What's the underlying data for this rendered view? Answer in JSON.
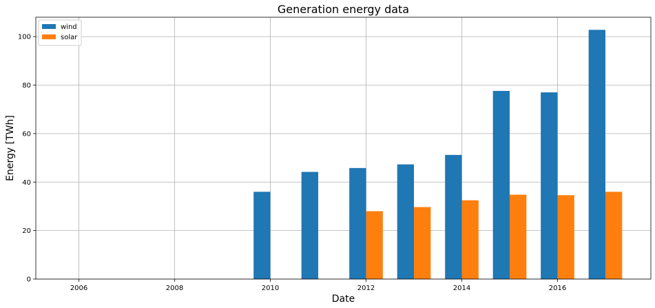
{
  "chart_data": {
    "type": "bar",
    "title": "Generation energy data",
    "xlabel": "Date",
    "ylabel": "Energy [TWh]",
    "x": [
      2010,
      2011,
      2012,
      2013,
      2014,
      2015,
      2016,
      2017
    ],
    "series": [
      {
        "name": "wind",
        "color": "#1f77b4",
        "values": [
          36.0,
          44.2,
          45.8,
          47.3,
          51.2,
          77.6,
          77.0,
          102.8
        ]
      },
      {
        "name": "solar",
        "color": "#ff7f0e",
        "values": [
          null,
          null,
          28.0,
          29.7,
          32.5,
          34.8,
          34.6,
          36.0
        ]
      }
    ],
    "xlim": [
      2005.1,
      2017.95
    ],
    "ylim": [
      0,
      108
    ],
    "x_ticks": [
      2006,
      2008,
      2010,
      2012,
      2014,
      2016
    ],
    "y_ticks": [
      0,
      20,
      40,
      60,
      80,
      100
    ],
    "grid": true,
    "legend_position": "top-left"
  }
}
